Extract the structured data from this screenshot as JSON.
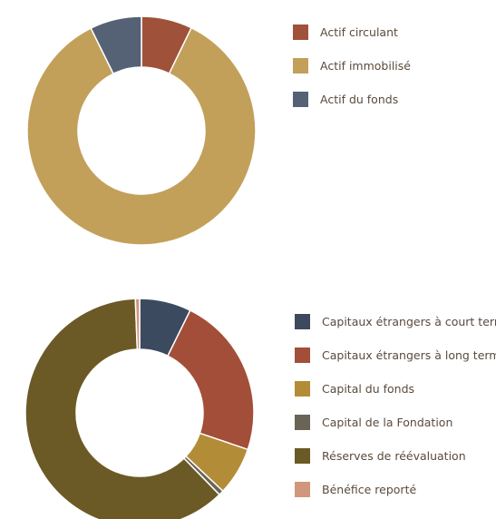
{
  "chart_data": [
    {
      "type": "pie",
      "donut": true,
      "title": "",
      "legend_position": "right",
      "categories": [
        "Actif circulant",
        "Actif immobilisé",
        "Actif du fonds"
      ],
      "values": [
        7.2,
        85.5,
        7.3
      ],
      "colors": [
        "#a0513a",
        "#c2a05a",
        "#556275"
      ]
    },
    {
      "type": "pie",
      "donut": true,
      "title": "",
      "legend_position": "right",
      "categories": [
        "Capitaux étrangers à court terme",
        "Capitaux étrangers à long terme",
        "Capital du fonds",
        "Capital de la Fondation",
        "Réserves de réévaluation",
        "Bénéfice reporté"
      ],
      "values": [
        7.3,
        22.9,
        6.8,
        0.7,
        61.7,
        0.6
      ],
      "colors": [
        "#3c4a60",
        "#a34e38",
        "#b38c38",
        "#6a6456",
        "#6b5a25",
        "#d1967c"
      ]
    }
  ]
}
